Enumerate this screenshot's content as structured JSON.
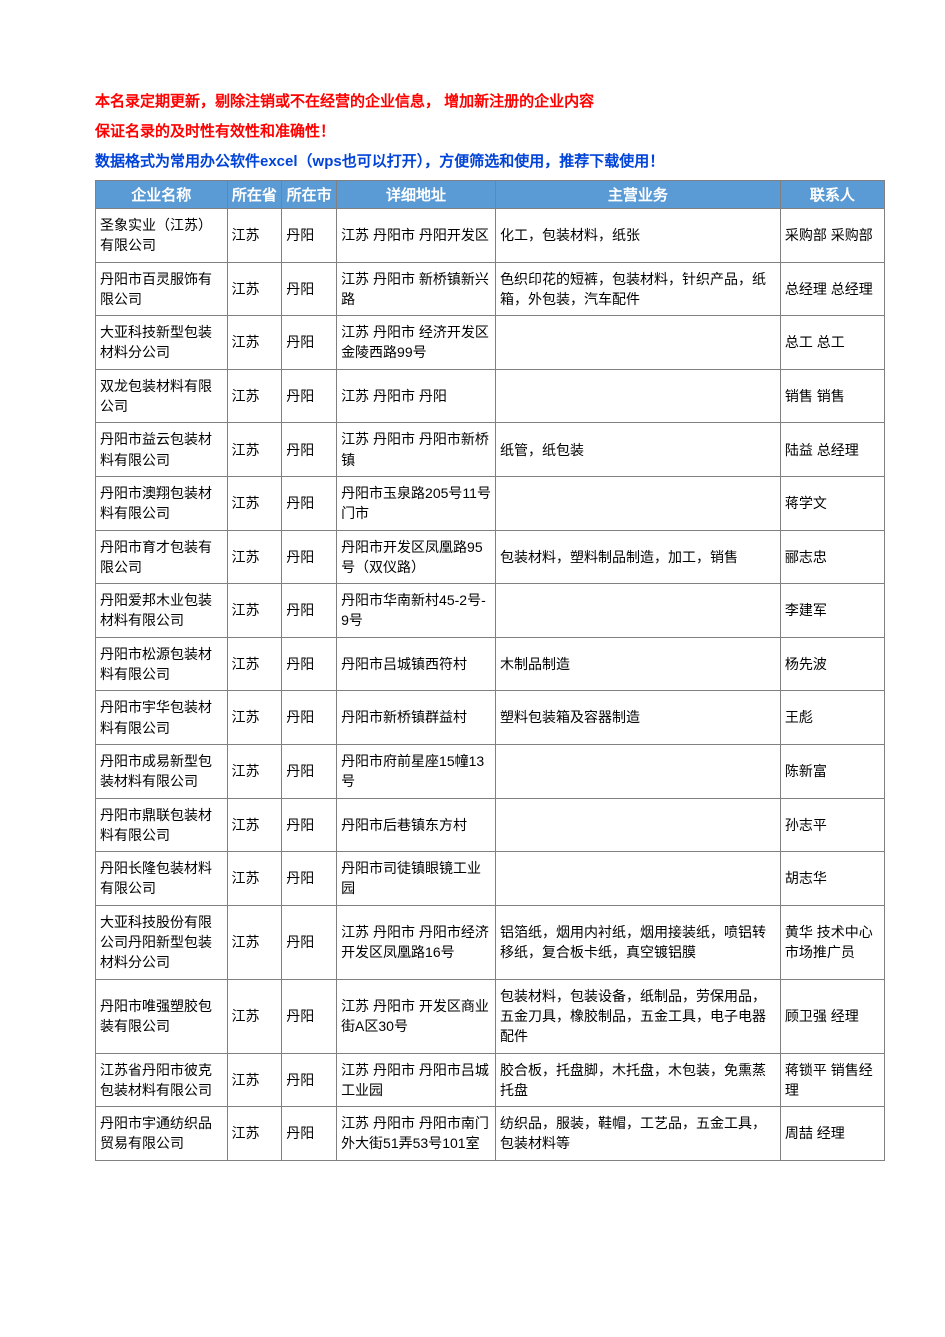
{
  "intro": {
    "line1": "本名录定期更新，剔除注销或不在经营的企业信息， 增加新注册的企业内容",
    "line2": "保证名录的及时性有效性和准确性！",
    "line3": "数据格式为常用办公软件excel（wps也可以打开），方便筛选和使用，推荐下载使用！"
  },
  "headers": {
    "name": "企业名称",
    "province": "所在省",
    "city": "所在市",
    "address": "详细地址",
    "business": "主营业务",
    "contact": "联系人"
  },
  "rows": [
    {
      "name": "圣象实业（江苏）有限公司",
      "province": "江苏",
      "city": "丹阳",
      "address": "江苏 丹阳市 丹阳开发区",
      "business": "化工，包装材料，纸张",
      "contact": "采购部 采购部"
    },
    {
      "name": "丹阳市百灵服饰有限公司",
      "province": "江苏",
      "city": "丹阳",
      "address": "江苏 丹阳市 新桥镇新兴路",
      "business": "色织印花的短裤，包装材料，针织产品，纸箱，外包装，汽车配件",
      "contact": "总经理 总经理"
    },
    {
      "name": "大亚科技新型包装材料分公司",
      "province": "江苏",
      "city": "丹阳",
      "address": "江苏 丹阳市 经济开发区金陵西路99号",
      "business": "",
      "contact": "总工 总工"
    },
    {
      "name": "双龙包装材料有限公司",
      "province": "江苏",
      "city": "丹阳",
      "address": "江苏 丹阳市 丹阳",
      "business": "",
      "contact": "销售 销售"
    },
    {
      "name": "丹阳市益云包装材料有限公司",
      "province": "江苏",
      "city": "丹阳",
      "address": "江苏 丹阳市 丹阳市新桥镇",
      "business": "纸管，纸包装",
      "contact": "陆益 总经理"
    },
    {
      "name": "丹阳市澳翔包装材料有限公司",
      "province": "江苏",
      "city": "丹阳",
      "address": "丹阳市玉泉路205号11号门市",
      "business": "",
      "contact": "蒋学文"
    },
    {
      "name": "丹阳市育才包装有限公司",
      "province": "江苏",
      "city": "丹阳",
      "address": "丹阳市开发区凤凰路95号（双仪路）",
      "business": "包装材料，塑料制品制造，加工，销售",
      "contact": "郦志忠"
    },
    {
      "name": "丹阳爱邦木业包装材料有限公司",
      "province": "江苏",
      "city": "丹阳",
      "address": "丹阳市华南新村45-2号-9号",
      "business": "",
      "contact": "李建军"
    },
    {
      "name": "丹阳市松源包装材料有限公司",
      "province": "江苏",
      "city": "丹阳",
      "address": "丹阳市吕城镇西符村",
      "business": "木制品制造",
      "contact": "杨先波"
    },
    {
      "name": "丹阳市宇华包装材料有限公司",
      "province": "江苏",
      "city": "丹阳",
      "address": "丹阳市新桥镇群益村",
      "business": "塑料包装箱及容器制造",
      "contact": "王彪"
    },
    {
      "name": "丹阳市成易新型包装材料有限公司",
      "province": "江苏",
      "city": "丹阳",
      "address": "丹阳市府前星座15幢13号",
      "business": "",
      "contact": "陈新富"
    },
    {
      "name": "丹阳市鼎联包装材料有限公司",
      "province": "江苏",
      "city": "丹阳",
      "address": "丹阳市后巷镇东方村",
      "business": "",
      "contact": "孙志平"
    },
    {
      "name": "丹阳长隆包装材料有限公司",
      "province": "江苏",
      "city": "丹阳",
      "address": "丹阳市司徒镇眼镜工业园",
      "business": "",
      "contact": "胡志华"
    },
    {
      "name": "大亚科技股份有限公司丹阳新型包装材料分公司",
      "province": "江苏",
      "city": "丹阳",
      "address": "江苏 丹阳市 丹阳市经济开发区凤凰路16号",
      "business": "铝箔纸，烟用内衬纸，烟用接装纸，喷铝转移纸，复合板卡纸，真空镀铝膜",
      "contact": "黄华   技术中心市场推广员"
    },
    {
      "name": "丹阳市唯强塑胶包装有限公司",
      "province": "江苏",
      "city": "丹阳",
      "address": "江苏 丹阳市 开发区商业街A区30号",
      "business": "包装材料，包装设备，纸制品，劳保用品，五金刀具，橡胶制品，五金工具，电子电器配件",
      "contact": "顾卫强   经理"
    },
    {
      "name": "江苏省丹阳市彼克包装材料有限公司",
      "province": "江苏",
      "city": "丹阳",
      "address": "江苏 丹阳市 丹阳市吕城工业园",
      "business": "胶合板，托盘脚，木托盘，木包装，免熏蒸托盘",
      "contact": "蒋锁平   销售经理"
    },
    {
      "name": "丹阳市宇通纺织品贸易有限公司",
      "province": "江苏",
      "city": "丹阳",
      "address": "江苏 丹阳市 丹阳市南门外大街51弄53号101室",
      "business": "纺织品，服装，鞋帽，工艺品，五金工具，包装材料等",
      "contact": "周喆   经理"
    }
  ],
  "style": {
    "header_bg": "#5b9bd5",
    "header_fg": "#ffffff",
    "border_color": "#808080",
    "intro_red": "#ff0000",
    "intro_blue": "#0043d9",
    "body_bg": "#ffffff",
    "font_size_body": 14,
    "font_size_header": 15,
    "col_widths": {
      "name": 120,
      "province": 50,
      "city": 50,
      "address": 145,
      "business": 260,
      "contact": 95
    }
  }
}
